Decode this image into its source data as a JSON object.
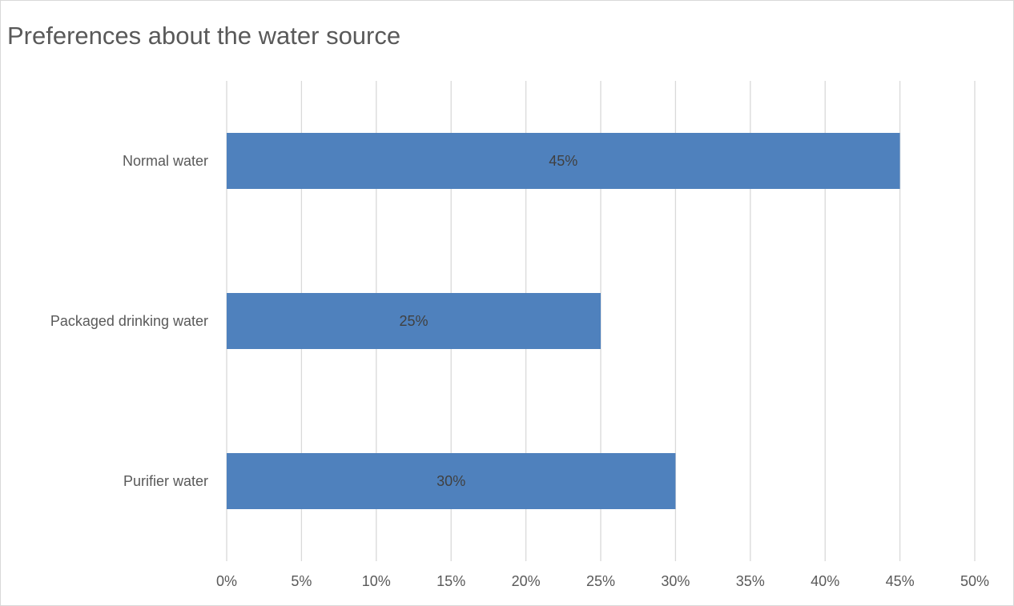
{
  "chart_data": {
    "type": "bar",
    "orientation": "horizontal",
    "title": "Preferences about the water source",
    "categories": [
      "Normal water",
      "Packaged drinking water",
      "Purifier water"
    ],
    "values": [
      45,
      25,
      30
    ],
    "data_labels": [
      "45%",
      "25%",
      "30%"
    ],
    "xlim": [
      0,
      50
    ],
    "x_ticks": [
      "0%",
      "5%",
      "10%",
      "15%",
      "20%",
      "25%",
      "30%",
      "35%",
      "40%",
      "45%",
      "50%"
    ],
    "grid": true,
    "legend": false,
    "bar_color": "#4f81bd",
    "grid_color": "#d9d9d9",
    "text_color": "#595959"
  }
}
